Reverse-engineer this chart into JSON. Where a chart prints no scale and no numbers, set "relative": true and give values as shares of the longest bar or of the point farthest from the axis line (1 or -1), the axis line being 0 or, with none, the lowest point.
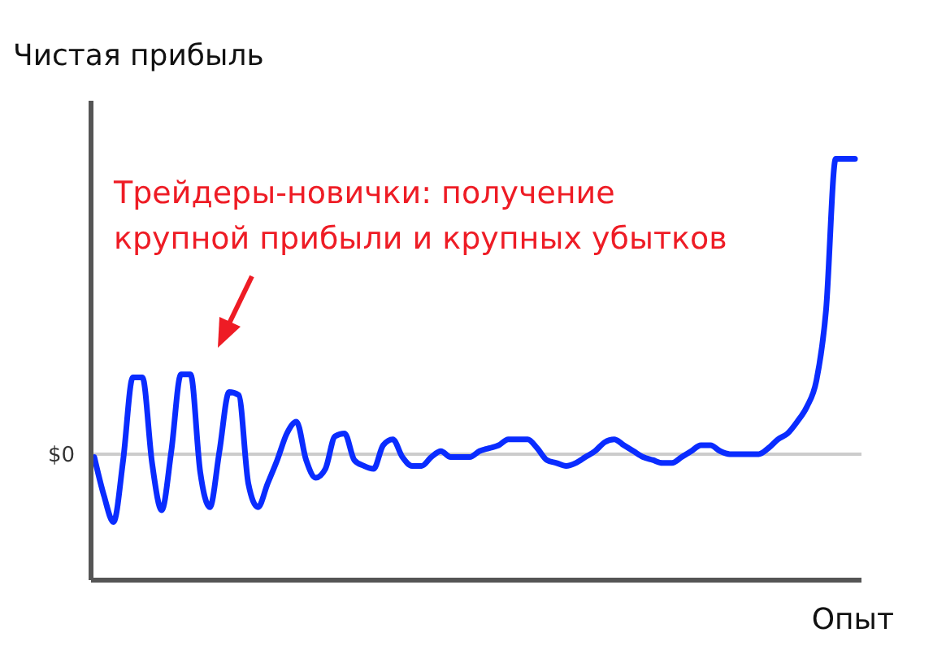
{
  "chart_data": {
    "type": "line",
    "xlabel": "Опыт",
    "ylabel": "Чистая прибыль",
    "relative": true,
    "categories": [
      null,
      null,
      null,
      null,
      null,
      null,
      null,
      null,
      null,
      null,
      null,
      null,
      null,
      null,
      null,
      null,
      null,
      null,
      null,
      null,
      null,
      null,
      null,
      null,
      null,
      null,
      null,
      null,
      null,
      null,
      null,
      null,
      null,
      null,
      null,
      null,
      null,
      null,
      null,
      null,
      null,
      null,
      null,
      null,
      null,
      null,
      null,
      null,
      null,
      null,
      null,
      null,
      null,
      null,
      null,
      null,
      null,
      null,
      null,
      null,
      null,
      null,
      null,
      null,
      null,
      null,
      null,
      null,
      null,
      null,
      null,
      null,
      null,
      null,
      null,
      null,
      null,
      null,
      null,
      null
    ],
    "series": [
      {
        "color": "#0a2cff",
        "values": [
          -0.01,
          -0.14,
          -0.23,
          -0.02,
          0.26,
          0.26,
          -0.03,
          -0.19,
          0.01,
          0.27,
          0.27,
          -0.06,
          -0.18,
          0.01,
          0.21,
          0.2,
          -0.1,
          -0.18,
          -0.1,
          -0.02,
          0.07,
          0.11,
          -0.02,
          -0.08,
          -0.05,
          0.06,
          0.07,
          -0.02,
          -0.04,
          -0.05,
          0.03,
          0.05,
          -0.01,
          -0.04,
          -0.04,
          -0.01,
          0.01,
          -0.01,
          -0.01,
          -0.01,
          0.01,
          0.02,
          0.03,
          0.05,
          0.05,
          0.05,
          0.02,
          -0.02,
          -0.03,
          -0.04,
          -0.03,
          -0.01,
          0.01,
          0.04,
          0.05,
          0.03,
          0.01,
          -0.01,
          -0.02,
          -0.03,
          -0.03,
          -0.01,
          0.01,
          0.03,
          0.03,
          0.01,
          0,
          0,
          0,
          0,
          0.02,
          0.05,
          0.07,
          0.11,
          0.16,
          0.25,
          0.49,
          1,
          1,
          1
        ]
      }
    ],
    "ref_lines": [
      {
        "axis": "y",
        "value": 0,
        "label": "$0",
        "color": "#cccccc"
      }
    ],
    "annotations": [
      "Трейдеры-новички: получение крупной прибыли и крупных убытков"
    ]
  }
}
